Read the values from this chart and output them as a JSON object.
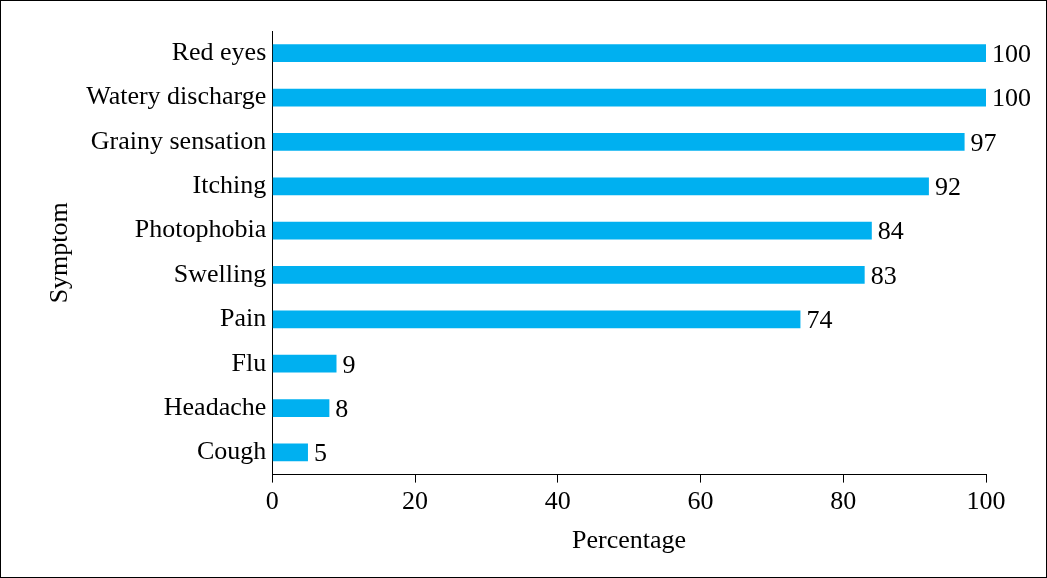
{
  "chart_data": {
    "type": "bar",
    "orientation": "horizontal",
    "xlabel": "Percentage",
    "ylabel": "Symptom",
    "categories": [
      "Red eyes",
      "Watery discharge",
      "Grainy sensation",
      "Itching",
      "Photophobia",
      "Swelling",
      "Pain",
      "Flu",
      "Headache",
      "Cough"
    ],
    "values": [
      100,
      100,
      97,
      92,
      84,
      83,
      74,
      9,
      8,
      5
    ],
    "color": "#00b0f0",
    "xlim": [
      0,
      100
    ],
    "xticks": [
      0,
      20,
      40,
      60,
      80,
      100
    ],
    "grid": false,
    "legend": false,
    "data_labels": true
  }
}
